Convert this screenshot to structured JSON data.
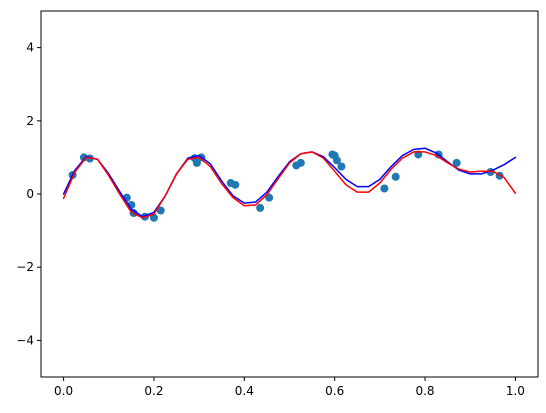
{
  "chart_data": {
    "type": "scatter",
    "title": "",
    "xlabel": "",
    "ylabel": "",
    "xlim": [
      -0.05,
      1.05
    ],
    "ylim": [
      -5,
      5
    ],
    "x_ticks": [
      0.0,
      0.2,
      0.4,
      0.6,
      0.8,
      1.0
    ],
    "x_tick_labels": [
      "0.0",
      "0.2",
      "0.4",
      "0.6",
      "0.8",
      "1.0"
    ],
    "y_ticks": [
      -4,
      -2,
      0,
      2,
      4
    ],
    "y_tick_labels": [
      "−4",
      "−2",
      "0",
      "2",
      "4"
    ],
    "grid": false,
    "legend": "none",
    "scatter_color": "#1f77b4",
    "scatter": {
      "x": [
        0.02,
        0.045,
        0.058,
        0.14,
        0.15,
        0.155,
        0.18,
        0.2,
        0.215,
        0.29,
        0.295,
        0.305,
        0.37,
        0.38,
        0.435,
        0.455,
        0.515,
        0.525,
        0.595,
        0.6,
        0.605,
        0.615,
        0.71,
        0.735,
        0.785,
        0.83,
        0.87,
        0.945,
        0.965
      ],
      "y": [
        0.52,
        1.0,
        0.97,
        -0.1,
        -0.3,
        -0.52,
        -0.62,
        -0.65,
        -0.45,
        0.98,
        0.85,
        1.0,
        0.3,
        0.25,
        -0.38,
        -0.1,
        0.78,
        0.85,
        1.08,
        1.05,
        0.92,
        0.75,
        0.15,
        0.47,
        1.08,
        1.08,
        0.85,
        0.6,
        0.5
      ]
    },
    "series": [
      {
        "color": "#0000ff",
        "x": [
          0.0,
          0.025,
          0.05,
          0.075,
          0.1,
          0.125,
          0.15,
          0.175,
          0.2,
          0.225,
          0.25,
          0.275,
          0.3,
          0.325,
          0.35,
          0.375,
          0.4,
          0.425,
          0.45,
          0.475,
          0.5,
          0.525,
          0.55,
          0.575,
          0.6,
          0.625,
          0.65,
          0.675,
          0.7,
          0.725,
          0.75,
          0.775,
          0.8,
          0.825,
          0.85,
          0.875,
          0.9,
          0.925,
          0.95,
          0.975,
          1.0
        ],
        "y": [
          0.0,
          0.65,
          1.02,
          0.95,
          0.55,
          0.05,
          -0.42,
          -0.62,
          -0.5,
          -0.05,
          0.55,
          0.98,
          1.05,
          0.82,
          0.35,
          -0.05,
          -0.25,
          -0.22,
          0.05,
          0.48,
          0.88,
          1.1,
          1.15,
          1.02,
          0.72,
          0.4,
          0.2,
          0.2,
          0.4,
          0.75,
          1.05,
          1.22,
          1.25,
          1.12,
          0.88,
          0.65,
          0.55,
          0.55,
          0.65,
          0.8,
          1.0
        ]
      },
      {
        "color": "#ff0000",
        "x": [
          0.0,
          0.025,
          0.05,
          0.075,
          0.1,
          0.125,
          0.15,
          0.175,
          0.2,
          0.225,
          0.25,
          0.275,
          0.3,
          0.325,
          0.35,
          0.375,
          0.4,
          0.425,
          0.45,
          0.475,
          0.5,
          0.525,
          0.55,
          0.575,
          0.6,
          0.625,
          0.65,
          0.675,
          0.7,
          0.725,
          0.75,
          0.775,
          0.8,
          0.825,
          0.85,
          0.875,
          0.9,
          0.925,
          0.95,
          0.975,
          1.0
        ],
        "y": [
          -0.12,
          0.6,
          1.0,
          0.95,
          0.5,
          -0.02,
          -0.5,
          -0.65,
          -0.55,
          -0.05,
          0.55,
          0.95,
          1.0,
          0.75,
          0.28,
          -0.1,
          -0.32,
          -0.3,
          -0.02,
          0.42,
          0.85,
          1.1,
          1.15,
          0.98,
          0.62,
          0.25,
          0.05,
          0.05,
          0.3,
          0.68,
          0.98,
          1.15,
          1.15,
          1.05,
          0.85,
          0.68,
          0.6,
          0.62,
          0.62,
          0.45,
          0.02
        ]
      }
    ]
  }
}
